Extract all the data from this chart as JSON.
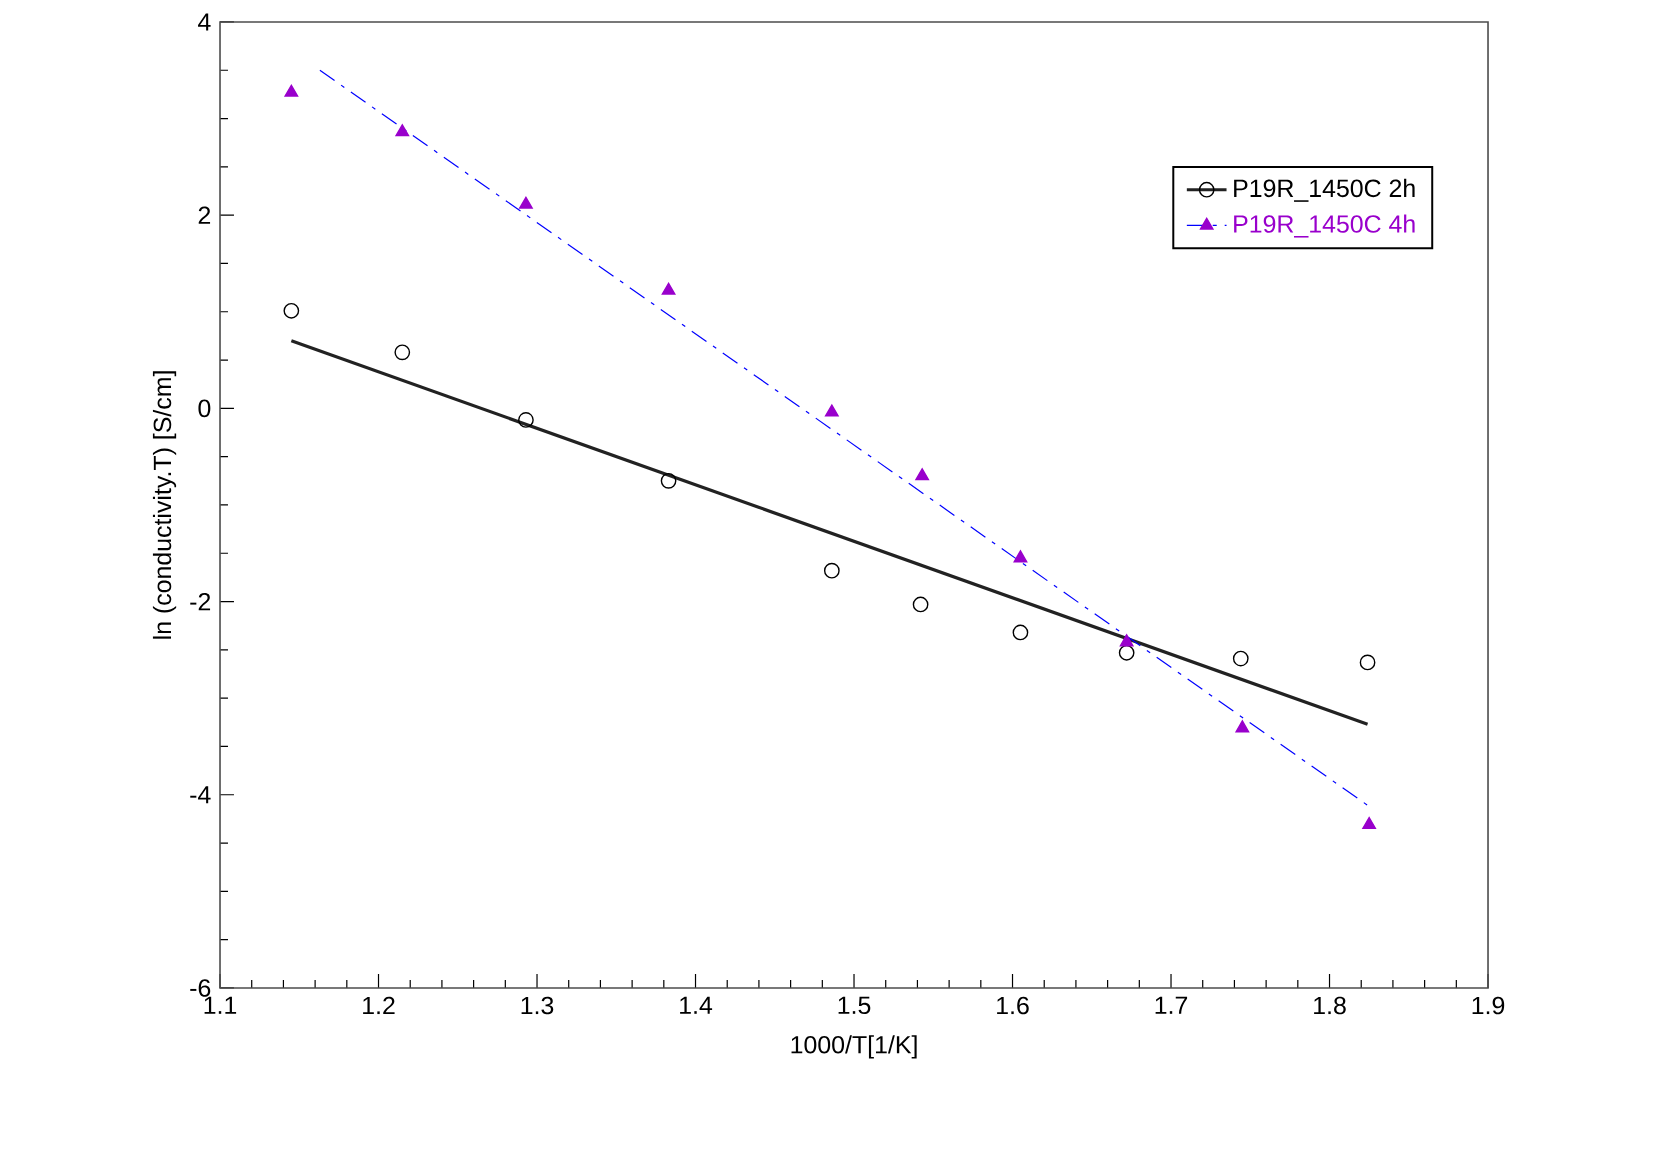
{
  "chart_data": {
    "type": "scatter",
    "xlabel": "1000/T[1/K]",
    "ylabel": "ln (conductivity.T) [S/cm]",
    "xlim": [
      1.1,
      1.9
    ],
    "ylim": [
      -6,
      4
    ],
    "xticks": [
      1.1,
      1.2,
      1.3,
      1.4,
      1.5,
      1.6,
      1.7,
      1.8,
      1.9
    ],
    "yticks": [
      -6,
      -4,
      -2,
      0,
      2,
      4
    ],
    "legend": "top right",
    "grid": false,
    "series": [
      {
        "name": "P19R_1450C 2h",
        "marker": "circle",
        "color": "#000000",
        "x": [
          1.145,
          1.215,
          1.293,
          1.383,
          1.486,
          1.542,
          1.605,
          1.672,
          1.744,
          1.824
        ],
        "values": [
          1.01,
          0.58,
          -0.12,
          -0.75,
          -1.68,
          -2.03,
          -2.32,
          -2.53,
          -2.59,
          -2.63
        ]
      },
      {
        "type": "line",
        "marker": "none",
        "line_style": "solid",
        "color": "#222222",
        "x": [
          1.145,
          1.824
        ],
        "values": [
          0.7,
          -3.27
        ]
      },
      {
        "name": "P19R_1450C 4h",
        "marker": "triangle",
        "color": "#9900cc",
        "x": [
          1.145,
          1.215,
          1.293,
          1.383,
          1.486,
          1.543,
          1.605,
          1.672,
          1.745,
          1.825
        ],
        "values": [
          3.27,
          2.86,
          2.11,
          1.22,
          -0.04,
          -0.7,
          -1.55,
          -2.42,
          -3.31,
          -4.31
        ]
      },
      {
        "type": "line",
        "marker": "none",
        "line_style": "dashed",
        "color": "#0000ff",
        "x": [
          1.163,
          1.825
        ],
        "values": [
          3.5,
          -4.12
        ]
      }
    ]
  }
}
